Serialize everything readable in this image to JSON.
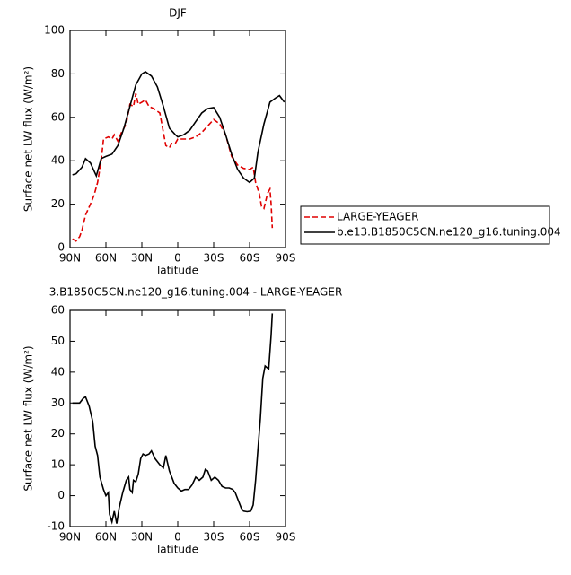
{
  "chart_data": [
    {
      "type": "line",
      "title": "DJF",
      "xlabel": "latitude",
      "ylabel": "Surface net LW flux (W/m²)",
      "xlim": [
        90,
        -90
      ],
      "ylim": [
        0,
        100
      ],
      "xticks": [
        {
          "value": 90,
          "label": "90N"
        },
        {
          "value": 60,
          "label": "60N"
        },
        {
          "value": 30,
          "label": "30N"
        },
        0,
        {
          "value": -30,
          "label": "30S"
        },
        {
          "value": -60,
          "label": "60S"
        },
        {
          "value": -90,
          "label": "90S"
        }
      ],
      "yticks": [
        0,
        20,
        40,
        60,
        80,
        100
      ],
      "legend": "outside right",
      "series": [
        {
          "name": "LARGE-YEAGER",
          "color": "#e00000",
          "dashed": true,
          "x": [
            88,
            85,
            82,
            80,
            77,
            73,
            70,
            67,
            64,
            62,
            58,
            55,
            53,
            50,
            47,
            43,
            40,
            37,
            35,
            33,
            30,
            27,
            24,
            20,
            15,
            10,
            7,
            5,
            2,
            0,
            -5,
            -10,
            -15,
            -20,
            -25,
            -30,
            -35,
            -40,
            -45,
            -50,
            -55,
            -60,
            -63,
            -65,
            -68,
            -70,
            -72,
            -75,
            -77,
            -78,
            -79
          ],
          "values": [
            4,
            3,
            5,
            8,
            15,
            20,
            24,
            30,
            40,
            50,
            51,
            50,
            52,
            49,
            53,
            57,
            66,
            65,
            71,
            66,
            67,
            68,
            65,
            64,
            62,
            47,
            46,
            48,
            48,
            50,
            50,
            50,
            51,
            53,
            56,
            59,
            57,
            52,
            42,
            38,
            36.5,
            36,
            37,
            30,
            25,
            19,
            18,
            25,
            27,
            20,
            9
          ]
        },
        {
          "name": "b.e13.B1850C5CN.ne120_g16.tuning.004",
          "color": "#000000",
          "dashed": false,
          "x": [
            88,
            85,
            80,
            77,
            73,
            68,
            64,
            60,
            55,
            50,
            45,
            40,
            35,
            30,
            27,
            22,
            17,
            12,
            7,
            2,
            0,
            -5,
            -10,
            -15,
            -20,
            -25,
            -30,
            -35,
            -40,
            -45,
            -50,
            -55,
            -60,
            -64,
            -67,
            -72,
            -77,
            -82,
            -85,
            -89
          ],
          "values": [
            33.5,
            34,
            37,
            41,
            39,
            33,
            41,
            42,
            43,
            47,
            55,
            65,
            75,
            80,
            81,
            79,
            74,
            65,
            55,
            52,
            51,
            52,
            54,
            58,
            62,
            64,
            64.5,
            60,
            52,
            43,
            36,
            32,
            30,
            32,
            44,
            57,
            67,
            69,
            70,
            67
          ]
        }
      ]
    },
    {
      "type": "line",
      "title": "3.B1850C5CN.ne120_g16.tuning.004 - LARGE-YEAGER",
      "xlabel": "latitude",
      "ylabel": "Surface net LW flux (W/m²)",
      "xlim": [
        90,
        -90
      ],
      "ylim": [
        -10,
        60
      ],
      "xticks": [
        {
          "value": 90,
          "label": "90N"
        },
        {
          "value": 60,
          "label": "60N"
        },
        {
          "value": 30,
          "label": "30N"
        },
        0,
        {
          "value": -30,
          "label": "30S"
        },
        {
          "value": -60,
          "label": "60S"
        },
        {
          "value": -90,
          "label": "90S"
        }
      ],
      "yticks": [
        -10,
        0,
        10,
        20,
        30,
        40,
        50,
        60
      ],
      "series": [
        {
          "color": "#000000",
          "dashed": false,
          "x": [
            88,
            82,
            79,
            77,
            74,
            71,
            69,
            67,
            65,
            62,
            60,
            58,
            57,
            55,
            53,
            51,
            49,
            46,
            43,
            41,
            40,
            38,
            37,
            35,
            33,
            31,
            29,
            27,
            24,
            22,
            19,
            15,
            12,
            10,
            7,
            3,
            0,
            -3,
            -6,
            -9,
            -12,
            -15,
            -18,
            -21,
            -23,
            -25,
            -28,
            -31,
            -34,
            -37,
            -40,
            -43,
            -46,
            -48,
            -50,
            -53,
            -55,
            -58,
            -61,
            -63,
            -65,
            -67,
            -69,
            -71,
            -73,
            -76,
            -78,
            -79
          ],
          "values": [
            30,
            30,
            31.5,
            32,
            29,
            24,
            16,
            13,
            6,
            2,
            0,
            1,
            -6,
            -8.5,
            -5,
            -9,
            -4,
            1,
            5,
            6,
            2,
            1,
            5,
            4.5,
            7,
            12,
            13.5,
            13,
            13.5,
            14.5,
            12,
            10,
            9,
            13,
            8,
            4,
            2.5,
            1.5,
            2,
            2,
            3.5,
            6,
            5,
            6,
            8.5,
            8,
            5,
            6,
            5,
            3,
            2.5,
            2.5,
            2,
            1,
            -1,
            -4,
            -5,
            -5.2,
            -5,
            -3,
            5,
            15,
            25,
            38,
            42,
            41,
            52,
            59
          ]
        }
      ]
    }
  ]
}
